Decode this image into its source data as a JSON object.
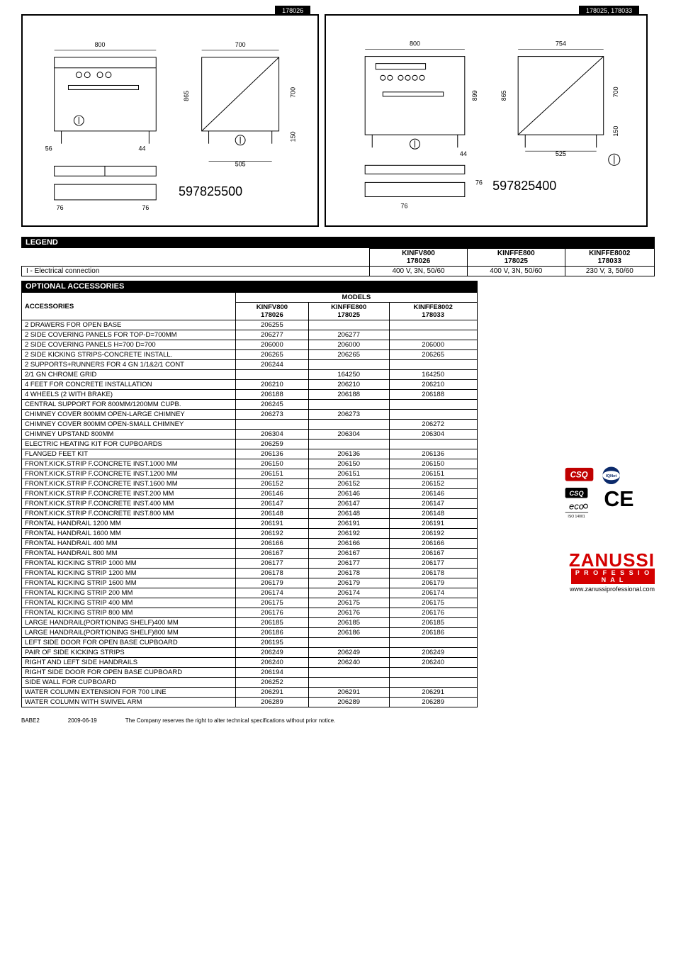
{
  "drawings": {
    "left": {
      "tab_label": "178026",
      "part_no": "597825500",
      "dims": {
        "w1": "800",
        "w2": "700",
        "h1": "865",
        "h2": "700",
        "h3": "150",
        "fl": "56",
        "fr": "44",
        "bw": "505",
        "pl": "76",
        "pr": "76"
      }
    },
    "right": {
      "tab_label": "178025, 178033",
      "part_no": "597825400",
      "dims": {
        "w1": "800",
        "w2": "754",
        "h1": "899",
        "h2": "865",
        "h3": "700",
        "h4": "150",
        "fr": "44",
        "bw": "525",
        "pl": "76",
        "pr": "76"
      }
    }
  },
  "legend": {
    "title": "LEGEND",
    "columns": [
      {
        "name": "KINFV800",
        "code": "178026"
      },
      {
        "name": "KINFFE800",
        "code": "178025"
      },
      {
        "name": "KINFFE8002",
        "code": "178033"
      }
    ],
    "rows": [
      {
        "label": "I  - Electrical connection",
        "values": [
          "400 V, 3N, 50/60",
          "400 V, 3N, 50/60",
          "230 V, 3, 50/60"
        ]
      }
    ]
  },
  "accessories": {
    "section_title": "OPTIONAL ACCESSORIES",
    "header_accessories": "ACCESSORIES",
    "header_models": "MODELS",
    "model_cols": [
      {
        "name": "KINFV800",
        "code": "178026"
      },
      {
        "name": "KINFFE800",
        "code": "178025"
      },
      {
        "name": "KINFFE8002",
        "code": "178033"
      }
    ],
    "rows": [
      [
        "2 DRAWERS FOR OPEN BASE",
        "206255",
        "",
        ""
      ],
      [
        "2 SIDE COVERING PANELS FOR TOP-D=700MM",
        "206277",
        "206277",
        ""
      ],
      [
        "2 SIDE COVERING PANELS H=700 D=700",
        "206000",
        "206000",
        "206000"
      ],
      [
        "2 SIDE KICKING STRIPS-CONCRETE INSTALL.",
        "206265",
        "206265",
        "206265"
      ],
      [
        "2 SUPPORTS+RUNNERS FOR 4 GN 1/1&2/1 CONT",
        "206244",
        "",
        ""
      ],
      [
        "2/1 GN CHROME GRID",
        "",
        "164250",
        "164250"
      ],
      [
        "4 FEET FOR CONCRETE INSTALLATION",
        "206210",
        "206210",
        "206210"
      ],
      [
        "4 WHEELS (2 WITH BRAKE)",
        "206188",
        "206188",
        "206188"
      ],
      [
        "CENTRAL SUPPORT FOR 800MM/1200MM CUPB.",
        "206245",
        "",
        ""
      ],
      [
        "CHIMNEY COVER 800MM OPEN-LARGE CHIMNEY",
        "206273",
        "206273",
        ""
      ],
      [
        "CHIMNEY COVER 800MM OPEN-SMALL CHIMNEY",
        "",
        "",
        "206272"
      ],
      [
        "CHIMNEY UPSTAND 800MM",
        "206304",
        "206304",
        "206304"
      ],
      [
        "ELECTRIC HEATING KIT FOR CUPBOARDS",
        "206259",
        "",
        ""
      ],
      [
        "FLANGED FEET KIT",
        "206136",
        "206136",
        "206136"
      ],
      [
        "FRONT.KICK.STRIP F.CONCRETE INST.1000 MM",
        "206150",
        "206150",
        "206150"
      ],
      [
        "FRONT.KICK.STRIP F.CONCRETE INST.1200 MM",
        "206151",
        "206151",
        "206151"
      ],
      [
        "FRONT.KICK.STRIP F.CONCRETE INST.1600 MM",
        "206152",
        "206152",
        "206152"
      ],
      [
        "FRONT.KICK.STRIP F.CONCRETE INST.200 MM",
        "206146",
        "206146",
        "206146"
      ],
      [
        "FRONT.KICK.STRIP F.CONCRETE INST.400 MM",
        "206147",
        "206147",
        "206147"
      ],
      [
        "FRONT.KICK.STRIP F.CONCRETE INST.800 MM",
        "206148",
        "206148",
        "206148"
      ],
      [
        "FRONTAL HANDRAIL 1200 MM",
        "206191",
        "206191",
        "206191"
      ],
      [
        "FRONTAL HANDRAIL 1600 MM",
        "206192",
        "206192",
        "206192"
      ],
      [
        "FRONTAL HANDRAIL 400 MM",
        "206166",
        "206166",
        "206166"
      ],
      [
        "FRONTAL HANDRAIL 800 MM",
        "206167",
        "206167",
        "206167"
      ],
      [
        "FRONTAL KICKING STRIP 1000 MM",
        "206177",
        "206177",
        "206177"
      ],
      [
        "FRONTAL KICKING STRIP 1200 MM",
        "206178",
        "206178",
        "206178"
      ],
      [
        "FRONTAL KICKING STRIP 1600 MM",
        "206179",
        "206179",
        "206179"
      ],
      [
        "FRONTAL KICKING STRIP 200 MM",
        "206174",
        "206174",
        "206174"
      ],
      [
        "FRONTAL KICKING STRIP 400 MM",
        "206175",
        "206175",
        "206175"
      ],
      [
        "FRONTAL KICKING STRIP 800 MM",
        "206176",
        "206176",
        "206176"
      ],
      [
        "LARGE HANDRAIL(PORTIONING SHELF)400 MM",
        "206185",
        "206185",
        "206185"
      ],
      [
        "LARGE HANDRAIL(PORTIONING SHELF)800 MM",
        "206186",
        "206186",
        "206186"
      ],
      [
        "LEFT SIDE DOOR FOR OPEN BASE CUPBOARD",
        "206195",
        "",
        ""
      ],
      [
        "PAIR OF SIDE KICKING STRIPS",
        "206249",
        "206249",
        "206249"
      ],
      [
        "RIGHT AND LEFT SIDE HANDRAILS",
        "206240",
        "206240",
        "206240"
      ],
      [
        "RIGHT SIDE DOOR FOR OPEN BASE CUPBOARD",
        "206194",
        "",
        ""
      ],
      [
        "SIDE WALL FOR CUPBOARD",
        "206252",
        "",
        ""
      ],
      [
        "WATER COLUMN EXTENSION FOR 700 LINE",
        "206291",
        "206291",
        "206291"
      ],
      [
        "WATER COLUMN WITH SWIVEL ARM",
        "206289",
        "206289",
        "206289"
      ]
    ]
  },
  "certs": {
    "csq": "CSQ",
    "iqnet": "IQNet",
    "eco": "eco",
    "ce": "CE",
    "iso": "ISO 14001"
  },
  "brand": {
    "name": "ZANUSSI",
    "sub": "P R O F E S S I O N A L",
    "url": "www.zanussiprofessional.com"
  },
  "footer": {
    "doc_code": "BABE2",
    "date": "2009-06-19",
    "disclaimer": "The Company reserves the right to alter technical specifications without prior notice."
  }
}
